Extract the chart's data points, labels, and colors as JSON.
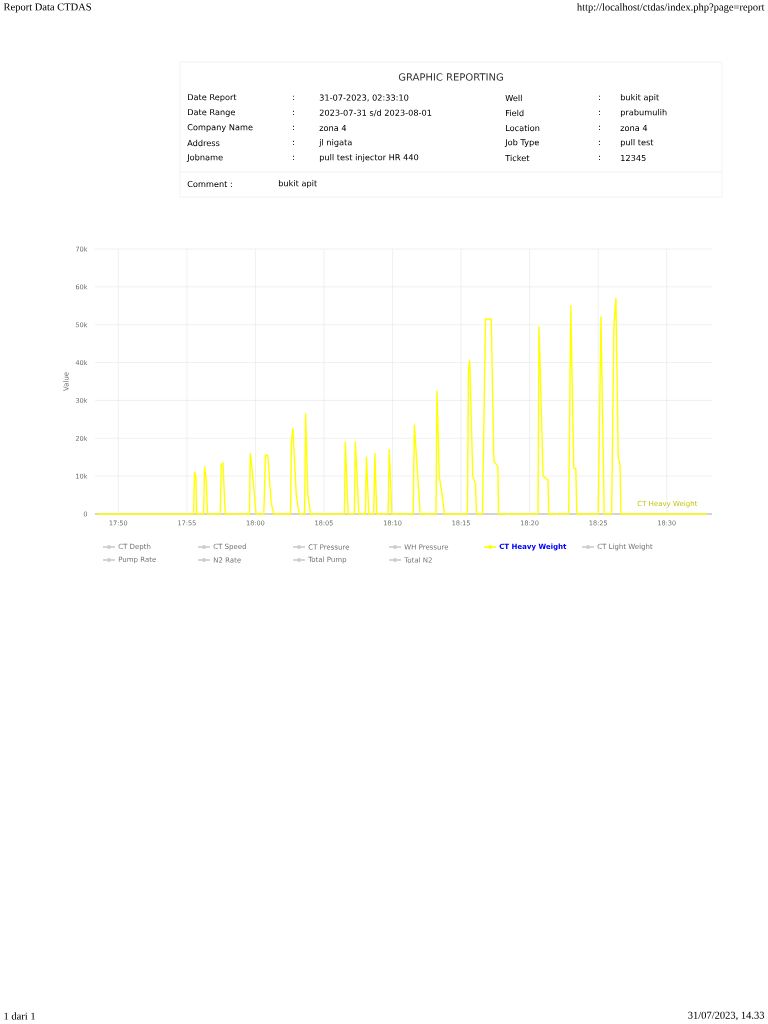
{
  "chart_data": {
    "type": "line",
    "title": "GRAPHIC REPORTING",
    "ylabel": "Value",
    "annotations": [
      "Report Data CTDAS",
      "http://localhost/ctdas/index.php?page=report",
      "Date Report",
      ":",
      "31-07-2023, 02:33:10",
      "Well",
      ":",
      "bukit apit",
      "Date Range",
      ":",
      "2023-07-31 s/d 2023-08-01",
      "Field",
      ":",
      "prabumulih",
      "Company Name",
      ":",
      "zona 4",
      "Location",
      ":",
      "zona 4",
      "Address",
      ":",
      "jl nigata",
      "Job Type",
      ":",
      "pull test",
      "Jobname",
      ":",
      "pull test injector HR 440",
      "Ticket",
      ":",
      "12345",
      "Comment :",
      "bukit apit",
      "1 dari 1",
      "31/07/2023, 14.33"
    ],
    "xlim": [
      17.805,
      18.555
    ],
    "ylim": [
      0,
      70000
    ],
    "xticks": [
      {
        "value": 17.8333,
        "label": "17:50"
      },
      {
        "value": 17.9167,
        "label": "17:55"
      },
      {
        "value": 18.0,
        "label": "18:00"
      },
      {
        "value": 18.0833,
        "label": "18:05"
      },
      {
        "value": 18.1667,
        "label": "18:10"
      },
      {
        "value": 18.25,
        "label": "18:15"
      },
      {
        "value": 18.3333,
        "label": "18:20"
      },
      {
        "value": 18.4167,
        "label": "18:25"
      },
      {
        "value": 18.5,
        "label": "18:30"
      }
    ],
    "yticks": [
      0,
      {
        "value": 10000,
        "label": "10k"
      },
      {
        "value": 20000,
        "label": "20k"
      },
      {
        "value": 30000,
        "label": "30k"
      },
      {
        "value": 40000,
        "label": "40k"
      },
      {
        "value": 50000,
        "label": "50k"
      },
      {
        "value": 60000,
        "label": "60k"
      },
      {
        "value": 70000,
        "label": "70k"
      }
    ],
    "grid": true,
    "legend": "bottom",
    "x": [
      17.8077,
      17.9248,
      17.926,
      17.9277,
      17.9285,
      17.937,
      17.9382,
      17.9402,
      17.9418,
      17.9573,
      17.9585,
      17.9605,
      17.9633,
      17.9927,
      17.9938,
      17.9955,
      18.0008,
      18.0102,
      18.0122,
      18.015,
      18.0192,
      18.0223,
      18.0427,
      18.0438,
      18.0455,
      18.0497,
      18.0517,
      18.0537,
      18.0598,
      18.061,
      18.0638,
      18.067,
      18.1082,
      18.1093,
      18.1127,
      18.1203,
      18.1215,
      18.1257,
      18.1337,
      18.135,
      18.1378,
      18.1438,
      18.1452,
      18.1475,
      18.1613,
      18.1627,
      18.1658,
      18.1918,
      18.1932,
      18.2003,
      18.2195,
      18.2207,
      18.2235,
      18.2277,
      18.2297,
      18.2577,
      18.259,
      18.2605,
      18.2642,
      18.2675,
      18.2687,
      18.276,
      18.2797,
      18.2867,
      18.2898,
      18.2947,
      18.2955,
      18.3435,
      18.3447,
      18.3497,
      18.3557,
      18.3565,
      18.3808,
      18.3833,
      18.387,
      18.3895,
      18.3907,
      18.4167,
      18.42,
      18.424,
      18.433,
      18.4358,
      18.4382,
      18.441,
      18.4432,
      18.4443,
      18.5488
    ],
    "series": [
      {
        "name": "CT Depth",
        "color": "#cccccc",
        "values": [
          null,
          null,
          null,
          null,
          null,
          null,
          null,
          null,
          null,
          null,
          null,
          null,
          null,
          null,
          null,
          null,
          null,
          null,
          null,
          null,
          null,
          null,
          null,
          null,
          null,
          null,
          null,
          null,
          null,
          null,
          null,
          null,
          null,
          null,
          null,
          null,
          null,
          null,
          null,
          null,
          null,
          null,
          null,
          null,
          null,
          null,
          null,
          null,
          null,
          null,
          null,
          null,
          null,
          null,
          null,
          null,
          null,
          null,
          null,
          null,
          null,
          null,
          null,
          null,
          null,
          null,
          null,
          null,
          null,
          null,
          null,
          null,
          null,
          null,
          null,
          null,
          null,
          null,
          null,
          null,
          null,
          null,
          null,
          null,
          null,
          null,
          null
        ]
      },
      {
        "name": "CT Speed",
        "color": "#cccccc",
        "values": [
          null,
          null,
          null,
          null,
          null,
          null,
          null,
          null,
          null,
          null,
          null,
          null,
          null,
          null,
          null,
          null,
          null,
          null,
          null,
          null,
          null,
          null,
          null,
          null,
          null,
          null,
          null,
          null,
          null,
          null,
          null,
          null,
          null,
          null,
          null,
          null,
          null,
          null,
          null,
          null,
          null,
          null,
          null,
          null,
          null,
          null,
          null,
          null,
          null,
          null,
          null,
          null,
          null,
          null,
          null,
          null,
          null,
          null,
          null,
          null,
          null,
          null,
          null,
          null,
          null,
          null,
          null,
          null,
          null,
          null,
          null,
          null,
          null,
          null,
          null,
          null,
          null,
          null,
          null,
          null,
          null,
          null,
          null,
          null,
          null,
          null,
          null
        ]
      },
      {
        "name": "CT Pressure",
        "color": "#cccccc",
        "values": [
          null,
          null,
          null,
          null,
          null,
          null,
          null,
          null,
          null,
          null,
          null,
          null,
          null,
          null,
          null,
          null,
          null,
          null,
          null,
          null,
          null,
          null,
          null,
          null,
          null,
          null,
          null,
          null,
          null,
          null,
          null,
          null,
          null,
          null,
          null,
          null,
          null,
          null,
          null,
          null,
          null,
          null,
          null,
          null,
          null,
          null,
          null,
          null,
          null,
          null,
          null,
          null,
          null,
          null,
          null,
          null,
          null,
          null,
          null,
          null,
          null,
          null,
          null,
          null,
          null,
          null,
          null,
          null,
          null,
          null,
          null,
          null,
          null,
          null,
          null,
          null,
          null,
          null,
          null,
          null,
          null,
          null,
          null,
          null,
          null,
          null,
          null
        ]
      },
      {
        "name": "WH Pressure",
        "color": "#cccccc",
        "values": [
          null,
          null,
          null,
          null,
          null,
          null,
          null,
          null,
          null,
          null,
          null,
          null,
          null,
          null,
          null,
          null,
          null,
          null,
          null,
          null,
          null,
          null,
          null,
          null,
          null,
          null,
          null,
          null,
          null,
          null,
          null,
          null,
          null,
          null,
          null,
          null,
          null,
          null,
          null,
          null,
          null,
          null,
          null,
          null,
          null,
          null,
          null,
          null,
          null,
          null,
          null,
          null,
          null,
          null,
          null,
          null,
          null,
          null,
          null,
          null,
          null,
          null,
          null,
          null,
          null,
          null,
          null,
          null,
          null,
          null,
          null,
          null,
          null,
          null,
          null,
          null,
          null,
          null,
          null,
          null,
          null,
          null,
          null,
          null,
          null,
          null,
          null
        ]
      },
      {
        "name": "CT Heavy Weight",
        "color": "#ffff00",
        "values": [
          0,
          0,
          11000,
          10000,
          0,
          0,
          12500,
          9000,
          0,
          0,
          13000,
          13500,
          0,
          0,
          16000,
          13000,
          0,
          0,
          15500,
          15500,
          3000,
          0,
          0,
          19000,
          22500,
          5000,
          2000,
          0,
          0,
          26500,
          5000,
          0,
          0,
          19000,
          0,
          0,
          19000,
          0,
          0,
          15000,
          0,
          0,
          16000,
          0,
          0,
          17000,
          0,
          0,
          23500,
          0,
          0,
          32500,
          10000,
          4000,
          0,
          0,
          38000,
          40500,
          10000,
          8000,
          0,
          0,
          51500,
          51500,
          14000,
          12500,
          0,
          0,
          49500,
          10000,
          9000,
          0,
          0,
          55000,
          12000,
          12000,
          0,
          0,
          52000,
          0,
          0,
          50000,
          57000,
          15000,
          13000,
          0,
          0
        ]
      },
      {
        "name": "CT Light Weight",
        "color": "#cccccc",
        "values": [
          null,
          null,
          null,
          null,
          null,
          null,
          null,
          null,
          null,
          null,
          null,
          null,
          null,
          null,
          null,
          null,
          null,
          null,
          null,
          null,
          null,
          null,
          null,
          null,
          null,
          null,
          null,
          null,
          null,
          null,
          null,
          null,
          null,
          null,
          null,
          null,
          null,
          null,
          null,
          null,
          null,
          null,
          null,
          null,
          null,
          null,
          null,
          null,
          null,
          null,
          null,
          null,
          null,
          null,
          null,
          null,
          null,
          null,
          null,
          null,
          null,
          null,
          null,
          null,
          null,
          null,
          null,
          null,
          null,
          null,
          null,
          null,
          null,
          null,
          null,
          null,
          null,
          null,
          null,
          null,
          null,
          null,
          null,
          null,
          null,
          null,
          null
        ]
      },
      {
        "name": "Pump Rate",
        "color": "#cccccc",
        "values": [
          null,
          null,
          null,
          null,
          null,
          null,
          null,
          null,
          null,
          null,
          null,
          null,
          null,
          null,
          null,
          null,
          null,
          null,
          null,
          null,
          null,
          null,
          null,
          null,
          null,
          null,
          null,
          null,
          null,
          null,
          null,
          null,
          null,
          null,
          null,
          null,
          null,
          null,
          null,
          null,
          null,
          null,
          null,
          null,
          null,
          null,
          null,
          null,
          null,
          null,
          null,
          null,
          null,
          null,
          null,
          null,
          null,
          null,
          null,
          null,
          null,
          null,
          null,
          null,
          null,
          null,
          null,
          null,
          null,
          null,
          null,
          null,
          null,
          null,
          null,
          null,
          null,
          null,
          null,
          null,
          null,
          null,
          null,
          null,
          null,
          null,
          null
        ]
      },
      {
        "name": "N2 Rate",
        "color": "#cccccc",
        "values": [
          null,
          null,
          null,
          null,
          null,
          null,
          null,
          null,
          null,
          null,
          null,
          null,
          null,
          null,
          null,
          null,
          null,
          null,
          null,
          null,
          null,
          null,
          null,
          null,
          null,
          null,
          null,
          null,
          null,
          null,
          null,
          null,
          null,
          null,
          null,
          null,
          null,
          null,
          null,
          null,
          null,
          null,
          null,
          null,
          null,
          null,
          null,
          null,
          null,
          null,
          null,
          null,
          null,
          null,
          null,
          null,
          null,
          null,
          null,
          null,
          null,
          null,
          null,
          null,
          null,
          null,
          null,
          null,
          null,
          null,
          null,
          null,
          null,
          null,
          null,
          null,
          null,
          null,
          null,
          null,
          null,
          null,
          null,
          null,
          null,
          null,
          null
        ]
      },
      {
        "name": "Total Pump",
        "color": "#cccccc",
        "values": [
          null,
          null,
          null,
          null,
          null,
          null,
          null,
          null,
          null,
          null,
          null,
          null,
          null,
          null,
          null,
          null,
          null,
          null,
          null,
          null,
          null,
          null,
          null,
          null,
          null,
          null,
          null,
          null,
          null,
          null,
          null,
          null,
          null,
          null,
          null,
          null,
          null,
          null,
          null,
          null,
          null,
          null,
          null,
          null,
          null,
          null,
          null,
          null,
          null,
          null,
          null,
          null,
          null,
          null,
          null,
          null,
          null,
          null,
          null,
          null,
          null,
          null,
          null,
          null,
          null,
          null,
          null,
          null,
          null,
          null,
          null,
          null,
          null,
          null,
          null,
          null,
          null,
          null,
          null,
          null,
          null,
          null,
          null,
          null,
          null,
          null,
          null
        ]
      },
      {
        "name": "Total N2",
        "color": "#cccccc",
        "values": [
          null,
          null,
          null,
          null,
          null,
          null,
          null,
          null,
          null,
          null,
          null,
          null,
          null,
          null,
          null,
          null,
          null,
          null,
          null,
          null,
          null,
          null,
          null,
          null,
          null,
          null,
          null,
          null,
          null,
          null,
          null,
          null,
          null,
          null,
          null,
          null,
          null,
          null,
          null,
          null,
          null,
          null,
          null,
          null,
          null,
          null,
          null,
          null,
          null,
          null,
          null,
          null,
          null,
          null,
          null,
          null,
          null,
          null,
          null,
          null,
          null,
          null,
          null,
          null,
          null,
          null,
          null,
          null,
          null,
          null,
          null,
          null,
          null,
          null,
          null,
          null,
          null,
          null,
          null,
          null,
          null,
          null,
          null,
          null,
          null,
          null,
          null
        ]
      }
    ]
  }
}
